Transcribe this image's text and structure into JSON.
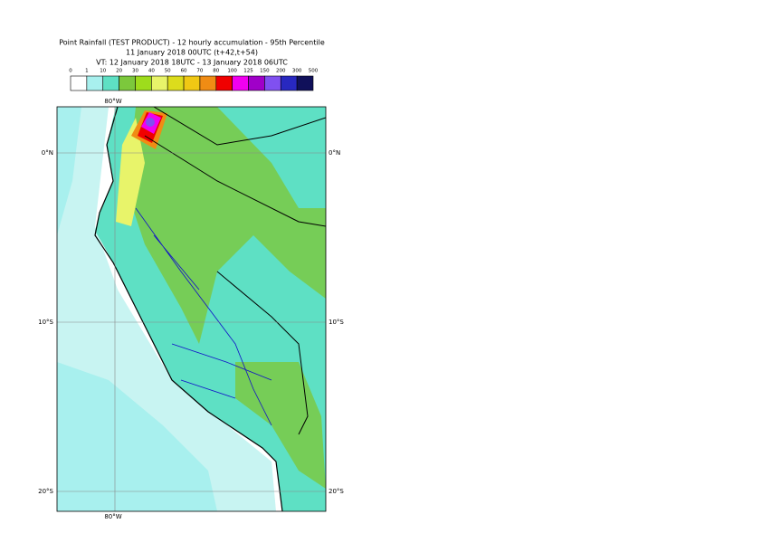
{
  "header": {
    "lines": [
      "Point Rainfall (TEST PRODUCT) - 12 hourly accumulation - 95th Percentile",
      "11 January 2018 00UTC (t+42,t+54)",
      "VT: 12 January 2018 18UTC - 13 January 2018 06UTC"
    ]
  },
  "legend": {
    "ticks": [
      0,
      1,
      10,
      20,
      30,
      40,
      50,
      60,
      70,
      80,
      100,
      125,
      150,
      200,
      300,
      500
    ],
    "colors": [
      "#ffffff",
      "#a8f0ee",
      "#5ee0c4",
      "#7cc83c",
      "#9edc1c",
      "#e8f46a",
      "#dcdc1c",
      "#f0c814",
      "#f08c14",
      "#f00000",
      "#f000f0",
      "#a000c8",
      "#8050f0",
      "#2828c0",
      "#10105a"
    ]
  },
  "map": {
    "top_labels": [
      "80°W"
    ],
    "bottom_labels": [
      "80°W"
    ],
    "left_labels": [
      "0°N",
      "10°S",
      "20°S"
    ],
    "right_labels": [
      "0°N",
      "10°S",
      "20°S"
    ]
  }
}
